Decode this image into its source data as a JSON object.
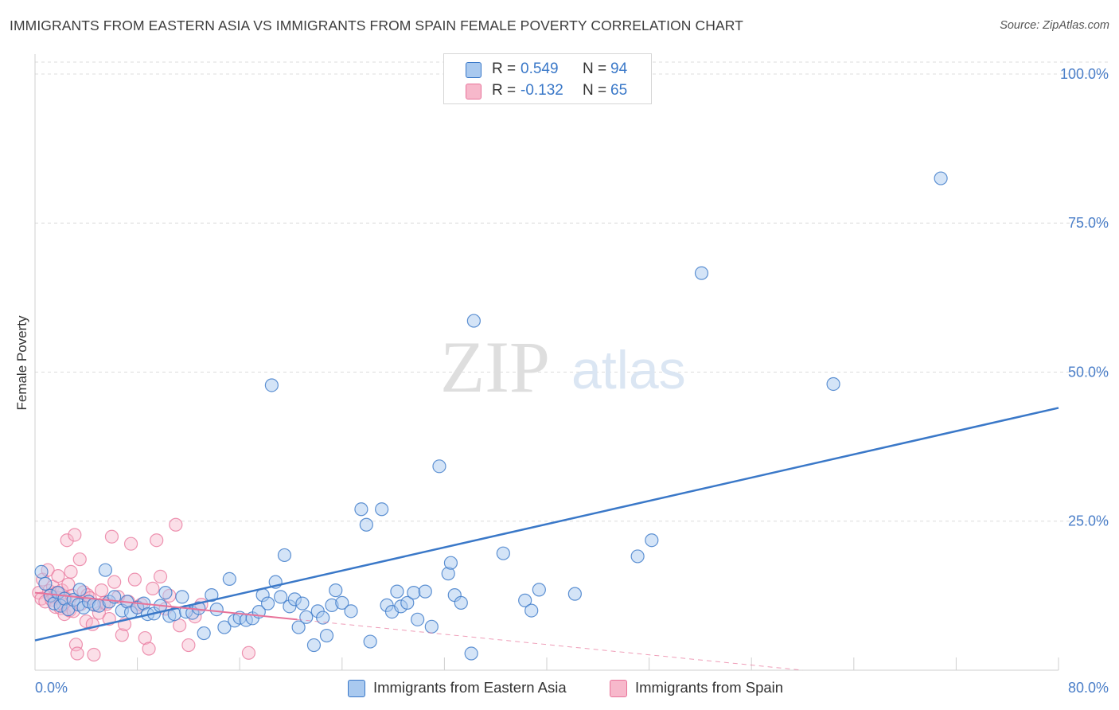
{
  "title": "IMMIGRANTS FROM EASTERN ASIA VS IMMIGRANTS FROM SPAIN FEMALE POVERTY CORRELATION CHART",
  "source": "Source: ZipAtlas.com",
  "watermark": {
    "zip": "ZIP",
    "atlas": "atlas"
  },
  "colors": {
    "blue": "#3a78c8",
    "blue_fill": "#a9c9ef",
    "pink": "#e8739a",
    "pink_fill": "#f7b8cb",
    "grid": "#dcdcdc"
  },
  "legend": {
    "r_label": "R =",
    "n_label": "N =",
    "series": [
      {
        "r": "0.549",
        "n": "94"
      },
      {
        "r": "-0.132",
        "n": "65"
      }
    ]
  },
  "chart_data": {
    "type": "scatter",
    "title": "IMMIGRANTS FROM EASTERN ASIA VS IMMIGRANTS FROM SPAIN FEMALE POVERTY CORRELATION CHART",
    "xlabel": "",
    "ylabel": "Female Poverty",
    "xlim": [
      0,
      80
    ],
    "ylim": [
      0,
      102
    ],
    "x_tick_labels": [
      "0.0%",
      "80.0%"
    ],
    "y_ticks": [
      25,
      50,
      75,
      100
    ],
    "y_tick_labels": [
      "25.0%",
      "50.0%",
      "75.0%",
      "100.0%"
    ],
    "legend": [
      "Immigrants from Eastern Asia",
      "Immigrants from Spain"
    ],
    "series": [
      {
        "name": "Immigrants from Eastern Asia",
        "trend": {
          "x": [
            0,
            80
          ],
          "y": [
            5.0,
            44.0
          ]
        },
        "points": [
          [
            0.5,
            16.5
          ],
          [
            0.8,
            14.5
          ],
          [
            1.2,
            12.5
          ],
          [
            1.5,
            11.2
          ],
          [
            1.8,
            13.0
          ],
          [
            2.0,
            10.8
          ],
          [
            2.3,
            12.0
          ],
          [
            2.6,
            10.2
          ],
          [
            3.0,
            11.8
          ],
          [
            3.4,
            11.0
          ],
          [
            3.8,
            10.5
          ],
          [
            3.5,
            13.5
          ],
          [
            4.2,
            11.5
          ],
          [
            4.6,
            11.0
          ],
          [
            5.0,
            10.8
          ],
          [
            5.5,
            16.8
          ],
          [
            5.8,
            11.5
          ],
          [
            6.2,
            12.3
          ],
          [
            6.8,
            10.0
          ],
          [
            7.2,
            11.5
          ],
          [
            7.5,
            9.7
          ],
          [
            8.0,
            10.5
          ],
          [
            8.5,
            11.2
          ],
          [
            8.8,
            9.4
          ],
          [
            9.3,
            9.5
          ],
          [
            9.8,
            10.8
          ],
          [
            10.2,
            13.0
          ],
          [
            10.5,
            9.1
          ],
          [
            10.9,
            9.4
          ],
          [
            11.5,
            12.3
          ],
          [
            11.8,
            9.8
          ],
          [
            12.3,
            9.6
          ],
          [
            12.8,
            10.4
          ],
          [
            13.2,
            6.2
          ],
          [
            13.8,
            12.6
          ],
          [
            14.2,
            10.2
          ],
          [
            14.8,
            7.2
          ],
          [
            15.2,
            15.3
          ],
          [
            15.6,
            8.3
          ],
          [
            16.0,
            8.8
          ],
          [
            16.5,
            8.4
          ],
          [
            17.0,
            8.7
          ],
          [
            17.5,
            9.8
          ],
          [
            17.8,
            12.6
          ],
          [
            18.2,
            11.2
          ],
          [
            18.5,
            47.8
          ],
          [
            18.8,
            14.8
          ],
          [
            19.2,
            12.3
          ],
          [
            19.5,
            19.3
          ],
          [
            19.9,
            10.7
          ],
          [
            20.3,
            11.9
          ],
          [
            20.6,
            7.2
          ],
          [
            20.9,
            11.2
          ],
          [
            21.2,
            8.9
          ],
          [
            21.8,
            4.2
          ],
          [
            22.1,
            9.9
          ],
          [
            22.5,
            8.8
          ],
          [
            22.8,
            5.8
          ],
          [
            23.2,
            10.9
          ],
          [
            23.5,
            13.4
          ],
          [
            24.0,
            11.3
          ],
          [
            24.7,
            9.9
          ],
          [
            25.5,
            27.0
          ],
          [
            25.9,
            24.4
          ],
          [
            26.2,
            4.8
          ],
          [
            27.1,
            27.0
          ],
          [
            27.5,
            10.9
          ],
          [
            27.9,
            9.8
          ],
          [
            28.3,
            13.2
          ],
          [
            28.6,
            10.7
          ],
          [
            29.1,
            11.3
          ],
          [
            29.6,
            13.0
          ],
          [
            29.9,
            8.5
          ],
          [
            30.5,
            13.2
          ],
          [
            31.0,
            7.3
          ],
          [
            31.6,
            34.2
          ],
          [
            32.3,
            16.2
          ],
          [
            32.5,
            18.0
          ],
          [
            32.8,
            12.6
          ],
          [
            33.3,
            11.3
          ],
          [
            34.1,
            2.8
          ],
          [
            34.3,
            58.6
          ],
          [
            36.6,
            19.6
          ],
          [
            38.3,
            11.7
          ],
          [
            38.8,
            10.0
          ],
          [
            39.4,
            13.5
          ],
          [
            42.2,
            12.8
          ],
          [
            47.1,
            19.1
          ],
          [
            48.2,
            21.8
          ],
          [
            52.1,
            66.6
          ],
          [
            62.4,
            48.0
          ],
          [
            70.8,
            82.5
          ]
        ]
      },
      {
        "name": "Immigrants from Spain",
        "trend_solid": {
          "x": [
            0,
            20.5
          ],
          "y": [
            13.0,
            8.5
          ]
        },
        "trend_dashed": {
          "x": [
            20.5,
            60
          ],
          "y": [
            8.5,
            0.0
          ]
        },
        "points": [
          [
            0.3,
            13.0
          ],
          [
            0.5,
            12.0
          ],
          [
            0.6,
            15.2
          ],
          [
            0.8,
            11.5
          ],
          [
            1.0,
            16.8
          ],
          [
            1.1,
            13.3
          ],
          [
            1.2,
            12.6
          ],
          [
            1.3,
            11.8
          ],
          [
            1.4,
            14.0
          ],
          [
            1.5,
            12.3
          ],
          [
            1.6,
            10.6
          ],
          [
            1.7,
            13.0
          ],
          [
            1.8,
            15.8
          ],
          [
            1.9,
            12.1
          ],
          [
            2.0,
            10.4
          ],
          [
            2.1,
            13.4
          ],
          [
            2.2,
            11.0
          ],
          [
            2.3,
            9.4
          ],
          [
            2.4,
            12.1
          ],
          [
            2.5,
            21.8
          ],
          [
            2.6,
            14.4
          ],
          [
            2.7,
            10.0
          ],
          [
            2.8,
            16.5
          ],
          [
            2.9,
            12.5
          ],
          [
            3.0,
            9.9
          ],
          [
            3.1,
            22.7
          ],
          [
            3.2,
            4.3
          ],
          [
            3.3,
            2.8
          ],
          [
            3.5,
            18.6
          ],
          [
            3.6,
            11.1
          ],
          [
            3.8,
            13.1
          ],
          [
            4.0,
            8.2
          ],
          [
            4.1,
            12.6
          ],
          [
            4.3,
            12.1
          ],
          [
            4.5,
            7.7
          ],
          [
            4.6,
            2.6
          ],
          [
            4.8,
            10.9
          ],
          [
            5.0,
            9.6
          ],
          [
            5.2,
            13.4
          ],
          [
            5.4,
            11.3
          ],
          [
            5.6,
            11.1
          ],
          [
            5.8,
            8.6
          ],
          [
            6.0,
            22.4
          ],
          [
            6.2,
            14.8
          ],
          [
            6.5,
            12.3
          ],
          [
            6.8,
            5.9
          ],
          [
            7.0,
            7.7
          ],
          [
            7.3,
            11.5
          ],
          [
            7.5,
            21.2
          ],
          [
            7.8,
            15.2
          ],
          [
            8.0,
            10.6
          ],
          [
            8.3,
            11.0
          ],
          [
            8.6,
            5.4
          ],
          [
            8.9,
            3.6
          ],
          [
            9.2,
            13.7
          ],
          [
            9.5,
            21.8
          ],
          [
            9.8,
            15.7
          ],
          [
            10.2,
            10.3
          ],
          [
            10.5,
            12.5
          ],
          [
            11.0,
            24.4
          ],
          [
            11.3,
            7.5
          ],
          [
            12.0,
            4.2
          ],
          [
            12.5,
            9.0
          ],
          [
            13.0,
            11.0
          ],
          [
            16.7,
            2.9
          ]
        ]
      }
    ]
  },
  "bottom_legend": {
    "items": [
      {
        "label": "Immigrants from Eastern Asia"
      },
      {
        "label": "Immigrants from Spain"
      }
    ]
  }
}
